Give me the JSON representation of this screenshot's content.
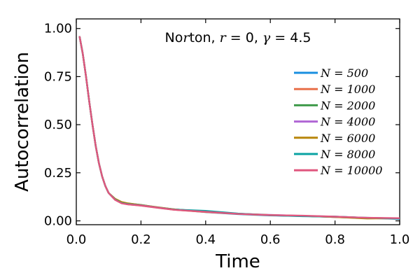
{
  "chart_data": {
    "type": "line",
    "title": "Norton, r = 0, γ = 4.5",
    "xlabel": "Time",
    "ylabel": "Autocorrelation",
    "xlim": [
      0.0,
      1.0
    ],
    "ylim": [
      -0.02,
      1.05
    ],
    "x_ticks": [
      0.0,
      0.2,
      0.4,
      0.6,
      0.8,
      1.0
    ],
    "x_tick_labels": [
      "0.0",
      "0.2",
      "0.4",
      "0.6",
      "0.8",
      "1.0"
    ],
    "y_ticks": [
      0.0,
      0.25,
      0.5,
      0.75,
      1.0
    ],
    "y_tick_labels": [
      "0.00",
      "0.25",
      "0.50",
      "0.75",
      "1.00"
    ],
    "grid": false,
    "legend_position": "right",
    "x": [
      0.01,
      0.02,
      0.03,
      0.04,
      0.05,
      0.06,
      0.07,
      0.08,
      0.09,
      0.1,
      0.12,
      0.14,
      0.16,
      0.2,
      0.25,
      0.3,
      0.4,
      0.5,
      0.6,
      0.7,
      0.8,
      0.9,
      1.0
    ],
    "series": [
      {
        "name": "N = 500",
        "color": "#1a8fe0",
        "values": [
          0.96,
          0.87,
          0.75,
          0.62,
          0.5,
          0.39,
          0.3,
          0.23,
          0.18,
          0.145,
          0.11,
          0.095,
          0.088,
          0.08,
          0.07,
          0.06,
          0.045,
          0.035,
          0.028,
          0.025,
          0.022,
          0.015,
          0.01
        ]
      },
      {
        "name": "N = 1000",
        "color": "#e8704a",
        "values": [
          0.96,
          0.87,
          0.75,
          0.62,
          0.5,
          0.39,
          0.3,
          0.23,
          0.18,
          0.145,
          0.11,
          0.092,
          0.086,
          0.079,
          0.068,
          0.058,
          0.046,
          0.036,
          0.03,
          0.026,
          0.02,
          0.014,
          0.012
        ]
      },
      {
        "name": "N = 2000",
        "color": "#3f9a4a",
        "values": [
          0.96,
          0.87,
          0.75,
          0.62,
          0.5,
          0.39,
          0.3,
          0.23,
          0.18,
          0.145,
          0.112,
          0.096,
          0.09,
          0.083,
          0.07,
          0.06,
          0.048,
          0.036,
          0.029,
          0.025,
          0.021,
          0.015,
          0.012
        ]
      },
      {
        "name": "N = 4000",
        "color": "#b066d4",
        "values": [
          0.96,
          0.87,
          0.75,
          0.62,
          0.5,
          0.39,
          0.3,
          0.23,
          0.18,
          0.145,
          0.11,
          0.094,
          0.087,
          0.08,
          0.069,
          0.059,
          0.049,
          0.037,
          0.031,
          0.026,
          0.02,
          0.015,
          0.013
        ]
      },
      {
        "name": "N = 6000",
        "color": "#b8860b",
        "values": [
          0.96,
          0.87,
          0.75,
          0.62,
          0.5,
          0.39,
          0.3,
          0.23,
          0.18,
          0.145,
          0.115,
          0.098,
          0.091,
          0.082,
          0.071,
          0.06,
          0.047,
          0.037,
          0.03,
          0.025,
          0.02,
          0.012,
          0.014
        ]
      },
      {
        "name": "N = 8000",
        "color": "#0aa3a3",
        "values": [
          0.96,
          0.87,
          0.75,
          0.62,
          0.5,
          0.39,
          0.3,
          0.23,
          0.18,
          0.145,
          0.111,
          0.093,
          0.087,
          0.081,
          0.07,
          0.059,
          0.052,
          0.038,
          0.029,
          0.024,
          0.022,
          0.016,
          0.012
        ]
      },
      {
        "name": "N = 10000",
        "color": "#e0577f",
        "values": [
          0.96,
          0.87,
          0.75,
          0.62,
          0.5,
          0.39,
          0.3,
          0.23,
          0.18,
          0.145,
          0.109,
          0.091,
          0.085,
          0.08,
          0.069,
          0.058,
          0.047,
          0.036,
          0.03,
          0.027,
          0.022,
          0.016,
          0.014
        ]
      }
    ]
  }
}
